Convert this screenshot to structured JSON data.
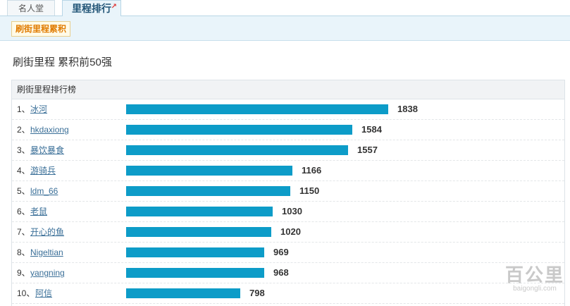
{
  "tabs": {
    "hall": "名人堂",
    "rank": "里程排行"
  },
  "subnav": {
    "active": "刷街里程累积"
  },
  "page_title": "刷街里程 累积前50强",
  "table_title": "刷街里程排行榜",
  "colors": {
    "bar": "#0d9cc8",
    "link": "#3a6f98",
    "subtab_text": "#e07b00"
  },
  "chart_data": {
    "type": "bar",
    "orientation": "horizontal",
    "categories": [
      "冰河",
      "hkdaxiong",
      "暴饮暴食",
      "游骑兵",
      "ldm_66",
      "老鼠",
      "开心的鱼",
      "Nigeltian",
      "yangning",
      "阿信"
    ],
    "values": [
      1838,
      1584,
      1557,
      1166,
      1150,
      1030,
      1020,
      969,
      968,
      798
    ]
  },
  "rows": [
    {
      "rank": "1、",
      "name": "冰河",
      "value": "1838"
    },
    {
      "rank": "2、",
      "name": "hkdaxiong",
      "value": "1584"
    },
    {
      "rank": "3、",
      "name": "暴饮暴食",
      "value": "1557"
    },
    {
      "rank": "4、",
      "name": "游骑兵",
      "value": "1166"
    },
    {
      "rank": "5、",
      "name": "ldm_66",
      "value": "1150"
    },
    {
      "rank": "6、",
      "name": "老鼠",
      "value": "1030"
    },
    {
      "rank": "7、",
      "name": "开心的鱼",
      "value": "1020"
    },
    {
      "rank": "8、",
      "name": "Nigeltian",
      "value": "969"
    },
    {
      "rank": "9、",
      "name": "yangning",
      "value": "968"
    },
    {
      "rank": "10、",
      "name": "阿信",
      "value": "798"
    }
  ],
  "watermark": {
    "cn": "百公里",
    "en": "baigongli.com"
  }
}
